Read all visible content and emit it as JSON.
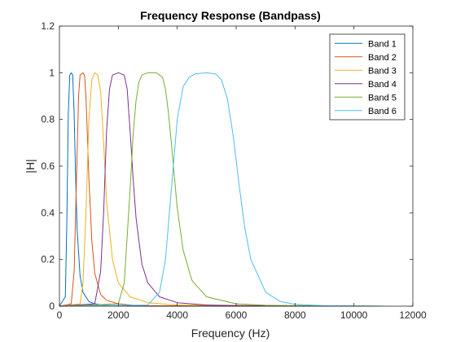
{
  "chart_data": {
    "type": "line",
    "title": "Frequency Response (Bandpass)",
    "xlabel": "Frequency (Hz)",
    "ylabel": "|H|",
    "xlim": [
      0,
      12000
    ],
    "ylim": [
      0,
      1.2
    ],
    "xticks": [
      0,
      2000,
      4000,
      6000,
      8000,
      10000,
      12000
    ],
    "xtick_labels": [
      "0",
      "2000",
      "4000",
      "6000",
      "8000",
      "10000",
      "12000"
    ],
    "yticks": [
      0,
      0.2,
      0.4,
      0.6,
      0.8,
      1,
      1.2
    ],
    "ytick_labels": [
      "0",
      "0.2",
      "0.4",
      "0.6",
      "0.8",
      "1",
      "1.2"
    ],
    "grid": false,
    "legend_position": "top-right",
    "x_max_plotted": 11025,
    "series": [
      {
        "name": "Band 1",
        "color": "#0072BD",
        "x": [
          0,
          200,
          250,
          300,
          350,
          400,
          450,
          500,
          550,
          600,
          700,
          800,
          1000,
          1200,
          1500,
          2000,
          2500,
          3000,
          11025
        ],
        "y": [
          0,
          0.04,
          0.35,
          0.82,
          0.99,
          1.0,
          0.99,
          0.82,
          0.55,
          0.33,
          0.13,
          0.06,
          0.02,
          0.01,
          0.005,
          0.002,
          0.001,
          0,
          0
        ]
      },
      {
        "name": "Band 2",
        "color": "#D95319",
        "x": [
          0,
          400,
          500,
          600,
          650,
          700,
          800,
          850,
          900,
          1000,
          1100,
          1200,
          1400,
          1600,
          2000,
          2500,
          3000,
          11025
        ],
        "y": [
          0,
          0.01,
          0.15,
          0.65,
          0.9,
          0.99,
          1.0,
          0.99,
          0.9,
          0.55,
          0.28,
          0.14,
          0.05,
          0.025,
          0.01,
          0.004,
          0.002,
          0
        ]
      },
      {
        "name": "Band 3",
        "color": "#EDB120",
        "x": [
          0,
          700,
          800,
          900,
          1000,
          1100,
          1200,
          1300,
          1400,
          1500,
          1600,
          1800,
          2000,
          2400,
          3000,
          4000,
          11025
        ],
        "y": [
          0,
          0.01,
          0.1,
          0.4,
          0.8,
          0.97,
          1.0,
          0.99,
          0.92,
          0.7,
          0.45,
          0.2,
          0.1,
          0.04,
          0.015,
          0.005,
          0
        ]
      },
      {
        "name": "Band 4",
        "color": "#7E2F8E",
        "x": [
          0,
          1200,
          1400,
          1500,
          1600,
          1700,
          1800,
          2000,
          2200,
          2300,
          2400,
          2500,
          2600,
          2800,
          3000,
          3400,
          4000,
          5000,
          6000,
          11025
        ],
        "y": [
          0,
          0.01,
          0.15,
          0.4,
          0.75,
          0.93,
          0.99,
          1.0,
          0.99,
          0.93,
          0.75,
          0.55,
          0.38,
          0.18,
          0.1,
          0.04,
          0.015,
          0.005,
          0.002,
          0
        ]
      },
      {
        "name": "Band 5",
        "color": "#77AC30",
        "x": [
          0,
          2000,
          2200,
          2400,
          2500,
          2600,
          2700,
          2800,
          3000,
          3300,
          3500,
          3600,
          3700,
          3800,
          4000,
          4200,
          4500,
          5000,
          6000,
          7000,
          8000,
          11025
        ],
        "y": [
          0,
          0.01,
          0.1,
          0.5,
          0.73,
          0.88,
          0.96,
          0.99,
          1.0,
          1.0,
          0.98,
          0.93,
          0.83,
          0.7,
          0.42,
          0.24,
          0.11,
          0.04,
          0.01,
          0.004,
          0.002,
          0
        ]
      },
      {
        "name": "Band 6",
        "color": "#4DBEEE",
        "x": [
          0,
          3000,
          3400,
          3600,
          3800,
          4000,
          4200,
          4400,
          4600,
          5000,
          5300,
          5500,
          5700,
          5900,
          6100,
          6300,
          6500,
          7000,
          7500,
          8000,
          9000,
          10000,
          11025
        ],
        "y": [
          0,
          0.005,
          0.06,
          0.2,
          0.5,
          0.8,
          0.94,
          0.98,
          0.995,
          1.0,
          0.995,
          0.97,
          0.89,
          0.73,
          0.52,
          0.33,
          0.2,
          0.06,
          0.02,
          0.008,
          0.002,
          0.001,
          0
        ]
      }
    ]
  }
}
